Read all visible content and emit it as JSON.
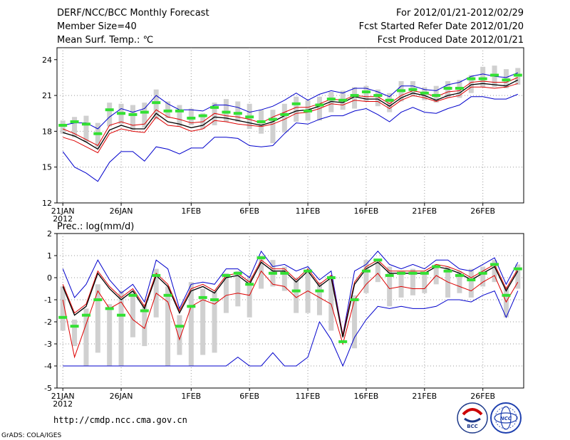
{
  "header": {
    "title": "DERF/NCC/BCC Monthly Forecast",
    "member_size": "Member Size=40",
    "variable": "Mean Surf. Temp.: ℃",
    "period": "For 2012/01/21-2012/02/29",
    "started": "Fcst Started Refer Date 2012/01/20",
    "produced": "Fcst Produced Date 2012/01/21"
  },
  "footer": {
    "url": "http://cmdp.ncc.cma.gov.cn",
    "grads": "GrADS: COLA/IGES",
    "logo_bcc": "BCC",
    "logo_ncc": "NCC"
  },
  "colors": {
    "ensemble_bar": "#d0d0d0",
    "median": "#33e033",
    "mean": "#000000",
    "spread": "#dd0000",
    "extreme": "#0000cc",
    "grid": "#999999"
  },
  "chart_data": [
    {
      "type": "line",
      "title": "Mean Surf. Temp.: ℃",
      "ylim": [
        12,
        25
      ],
      "yticks": [
        "12",
        "15",
        "18",
        "21",
        "24"
      ],
      "ytick_values": [
        12,
        15,
        18,
        21,
        24
      ],
      "xtick_labels": [
        "21JAN",
        "26JAN",
        "1FEB",
        "6FEB",
        "11FEB",
        "16FEB",
        "21FEB",
        "26FEB"
      ],
      "xtick_index": [
        0,
        5,
        11,
        16,
        21,
        26,
        31,
        36
      ],
      "year_label": "2012",
      "x_dates": "2012-01-21 to 2012-02-29 (daily, 40 days)",
      "bar_low": [
        17.8,
        17.5,
        17.1,
        16.6,
        18.4,
        18.6,
        18.1,
        18.3,
        19.0,
        19.1,
        18.4,
        18.5,
        18.2,
        18.5,
        18.8,
        18.8,
        18.2,
        17.8,
        17.0,
        17.9,
        18.8,
        18.9,
        18.9,
        19.6,
        19.8,
        19.9,
        20.5,
        20.1,
        19.6,
        20.5,
        20.9,
        20.6,
        20.4,
        20.8,
        20.8,
        21.2,
        21.7,
        21.7,
        21.6,
        21.9
      ],
      "bar_high": [
        18.9,
        19.2,
        19.3,
        18.7,
        20.4,
        20.3,
        20.2,
        20.4,
        21.5,
        20.5,
        20.2,
        19.9,
        19.5,
        20.4,
        20.7,
        20.5,
        20.3,
        19.8,
        19.8,
        20.3,
        20.9,
        20.6,
        20.9,
        21.3,
        21.4,
        21.7,
        21.8,
        21.5,
        21.2,
        22.2,
        22.2,
        21.7,
        21.8,
        22.2,
        22.3,
        22.7,
        23.4,
        23.5,
        23.2,
        23.3
      ],
      "median": [
        18.5,
        18.8,
        18.6,
        17.8,
        19.8,
        19.5,
        19.4,
        19.6,
        20.4,
        19.7,
        19.7,
        19.1,
        19.3,
        20.0,
        19.6,
        19.5,
        19.2,
        18.8,
        19.0,
        19.4,
        20.3,
        19.7,
        20.2,
        20.7,
        20.6,
        21.0,
        21.3,
        21.0,
        20.6,
        21.4,
        21.5,
        21.2,
        21.0,
        21.6,
        21.6,
        22.4,
        22.4,
        22.7,
        22.3,
        22.7
      ],
      "mean": [
        17.9,
        17.6,
        17.1,
        16.5,
        18.1,
        18.5,
        18.2,
        18.2,
        19.5,
        18.8,
        18.6,
        18.3,
        18.5,
        19.2,
        19.1,
        18.9,
        18.7,
        18.5,
        18.8,
        19.3,
        19.7,
        19.8,
        20.1,
        20.5,
        20.4,
        20.9,
        20.7,
        20.7,
        20.1,
        20.8,
        21.2,
        21.0,
        20.6,
        21.0,
        21.2,
        21.9,
        22.0,
        21.9,
        21.8,
        22.3
      ],
      "spread_upper": [
        18.2,
        17.8,
        17.3,
        16.8,
        18.5,
        18.8,
        18.5,
        18.6,
        19.8,
        19.2,
        19.0,
        18.7,
        18.8,
        19.5,
        19.3,
        19.2,
        19.0,
        18.7,
        19.2,
        19.6,
        20.0,
        20.0,
        20.3,
        20.7,
        20.6,
        21.0,
        20.9,
        20.9,
        20.3,
        21.0,
        21.4,
        21.2,
        20.9,
        21.3,
        21.4,
        22.1,
        22.2,
        22.1,
        22.1,
        22.5
      ],
      "spread_lower": [
        17.5,
        17.2,
        16.7,
        16.2,
        17.8,
        18.2,
        18.0,
        17.9,
        19.2,
        18.5,
        18.4,
        18.0,
        18.2,
        18.9,
        18.8,
        18.6,
        18.5,
        18.4,
        18.6,
        19.0,
        19.5,
        19.6,
        19.9,
        20.3,
        20.2,
        20.6,
        20.5,
        20.5,
        19.9,
        20.6,
        21.0,
        20.8,
        20.5,
        20.8,
        21.0,
        21.7,
        21.7,
        21.6,
        21.7,
        22.0
      ],
      "maximum": [
        18.5,
        18.7,
        18.7,
        18.2,
        19.2,
        19.9,
        19.6,
        19.9,
        21.0,
        20.3,
        19.8,
        19.8,
        19.7,
        20.2,
        20.2,
        20.0,
        19.6,
        19.8,
        20.1,
        20.6,
        21.2,
        20.6,
        21.1,
        21.4,
        21.2,
        21.6,
        21.6,
        21.3,
        20.9,
        21.8,
        21.8,
        21.5,
        21.4,
        21.9,
        22.1,
        22.6,
        22.8,
        22.6,
        22.5,
        22.9
      ],
      "minimum": [
        16.3,
        15.0,
        14.5,
        13.8,
        15.4,
        16.3,
        16.3,
        15.5,
        16.7,
        16.5,
        16.1,
        16.6,
        16.6,
        17.5,
        17.5,
        17.4,
        16.8,
        16.7,
        16.8,
        17.8,
        18.7,
        18.6,
        19.0,
        19.3,
        19.3,
        19.7,
        19.9,
        19.4,
        18.8,
        19.6,
        20.0,
        19.6,
        19.5,
        19.9,
        20.2,
        20.9,
        20.9,
        20.7,
        20.7,
        21.1
      ]
    },
    {
      "type": "line",
      "title": "Prec.: log(mm/d)",
      "ylim": [
        -5,
        2
      ],
      "yticks": [
        "-5",
        "-4",
        "-3",
        "-2",
        "-1",
        "0",
        "1",
        "2"
      ],
      "ytick_values": [
        -5,
        -4,
        -3,
        -2,
        -1,
        0,
        1,
        2
      ],
      "xtick_labels": [
        "21JAN",
        "26JAN",
        "1FEB",
        "6FEB",
        "11FEB",
        "16FEB",
        "21FEB",
        "26FEB"
      ],
      "xtick_index": [
        0,
        5,
        11,
        16,
        21,
        26,
        31,
        36
      ],
      "year_label": "2012",
      "x_dates": "2012-01-21 to 2012-02-29 (daily, 40 days)",
      "bar_low": [
        -2.4,
        -3.1,
        -4.0,
        -3.4,
        -4.0,
        -4.0,
        -2.7,
        -3.1,
        -1.8,
        -4.0,
        -3.5,
        -4.0,
        -3.5,
        -3.4,
        -1.6,
        -1.3,
        -1.8,
        -0.5,
        -0.4,
        -0.6,
        -1.6,
        -1.6,
        -1.7,
        -2.4,
        -1.3,
        -3.2,
        -0.7,
        -0.2,
        -1.3,
        -0.9,
        -0.8,
        -0.7,
        -0.3,
        -0.9,
        -0.7,
        -0.9,
        -0.4,
        -0.2,
        -1.8,
        -0.5
      ],
      "bar_high": [
        -0.4,
        -1.9,
        -1.4,
        -0.3,
        -1.2,
        -0.6,
        -0.6,
        -1.2,
        0.4,
        -0.4,
        -1.7,
        -0.2,
        -0.5,
        -0.6,
        0.2,
        0.3,
        0.1,
        1.0,
        0.8,
        0.5,
        0.0,
        0.3,
        -0.2,
        0.1,
        -2.6,
        -0.8,
        0.8,
        0.8,
        0.5,
        0.3,
        0.4,
        0.2,
        0.6,
        0.5,
        0.3,
        0.4,
        0.5,
        0.8,
        -0.4,
        0.6
      ],
      "median": [
        -1.8,
        -2.2,
        -1.7,
        -1.0,
        -1.4,
        -1.7,
        -0.8,
        -1.5,
        0.1,
        -0.8,
        -2.2,
        -1.3,
        -0.9,
        -1.0,
        0.1,
        0.2,
        -0.3,
        0.9,
        0.2,
        0.2,
        -0.6,
        0.3,
        -0.6,
        0.0,
        -2.9,
        -1.0,
        0.3,
        0.8,
        0.1,
        0.2,
        0.2,
        0.2,
        0.5,
        0.3,
        0.1,
        -0.1,
        0.2,
        0.6,
        -0.8,
        0.4
      ],
      "mean": [
        -0.4,
        -1.7,
        -1.3,
        0.2,
        -0.5,
        -1.0,
        -0.6,
        -1.4,
        0.1,
        -0.4,
        -1.6,
        -0.6,
        -0.4,
        -0.7,
        0.0,
        0.1,
        -0.3,
        0.7,
        0.3,
        0.3,
        -0.2,
        0.3,
        -0.4,
        0.0,
        -2.7,
        -0.3,
        0.4,
        0.7,
        0.2,
        0.2,
        0.2,
        0.2,
        0.5,
        0.4,
        0.2,
        -0.1,
        0.2,
        0.5,
        -0.6,
        0.3
      ],
      "spread_upper": [
        -0.3,
        -1.6,
        -1.2,
        0.3,
        -0.4,
        -0.9,
        -0.5,
        -1.3,
        0.2,
        -0.3,
        -1.5,
        -0.5,
        -0.3,
        -0.6,
        0.1,
        0.2,
        -0.2,
        0.8,
        0.4,
        0.4,
        -0.1,
        0.4,
        -0.3,
        0.1,
        -2.6,
        -0.2,
        0.5,
        0.8,
        0.3,
        0.3,
        0.3,
        0.3,
        0.6,
        0.5,
        0.3,
        0.0,
        0.3,
        0.6,
        -0.5,
        0.4
      ],
      "spread_lower": [
        -1.0,
        -3.6,
        -2.1,
        -0.6,
        -1.4,
        -1.1,
        -1.9,
        -2.3,
        -0.7,
        -1.1,
        -2.8,
        -1.3,
        -1.0,
        -1.2,
        -0.8,
        -0.7,
        -0.8,
        0.3,
        -0.3,
        -0.4,
        -0.9,
        -0.6,
        -0.9,
        -1.2,
        -3.0,
        -1.0,
        -0.3,
        0.2,
        -0.5,
        -0.4,
        -0.5,
        -0.5,
        0.1,
        -0.2,
        -0.4,
        -0.6,
        -0.2,
        0.1,
        -1.1,
        -0.2
      ],
      "maximum": [
        0.4,
        -0.9,
        -0.3,
        0.8,
        -0.1,
        -0.7,
        -0.3,
        -1.1,
        0.8,
        0.4,
        -1.4,
        -0.3,
        -0.2,
        -0.3,
        0.4,
        0.4,
        0.0,
        1.2,
        0.5,
        0.6,
        0.3,
        0.5,
        -0.1,
        0.3,
        -2.6,
        0.3,
        0.6,
        1.2,
        0.6,
        0.4,
        0.6,
        0.4,
        0.8,
        0.8,
        0.4,
        0.3,
        0.6,
        0.9,
        -0.3,
        0.7
      ],
      "minimum": [
        -4.0,
        -4.0,
        -4.0,
        -4.0,
        -4.0,
        -4.0,
        -4.0,
        -4.0,
        -4.0,
        -4.0,
        -4.0,
        -4.0,
        -4.0,
        -4.0,
        -4.0,
        -3.6,
        -4.0,
        -4.0,
        -3.4,
        -4.0,
        -4.0,
        -3.6,
        -2.0,
        -2.8,
        -4.0,
        -2.7,
        -1.9,
        -1.3,
        -1.4,
        -1.3,
        -1.4,
        -1.4,
        -1.3,
        -1.0,
        -1.0,
        -1.1,
        -0.8,
        -0.6,
        -1.8,
        -0.6
      ]
    }
  ]
}
